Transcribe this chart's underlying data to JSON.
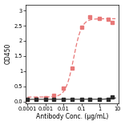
{
  "title": "",
  "xlabel": "Antibody Conc. (µg/mL)",
  "ylabel": "OD450",
  "red_x": [
    0.0001,
    0.0003,
    0.001,
    0.003,
    0.01,
    0.03,
    0.1,
    0.3,
    1.0,
    3.0,
    5.0
  ],
  "red_y": [
    0.08,
    0.1,
    0.13,
    0.2,
    0.45,
    1.1,
    2.45,
    2.78,
    2.75,
    2.72,
    2.6
  ],
  "black_x": [
    0.0001,
    0.0003,
    0.001,
    0.003,
    0.01,
    0.03,
    0.1,
    0.3,
    1.0,
    3.0,
    5.0
  ],
  "black_y": [
    0.07,
    0.07,
    0.07,
    0.07,
    0.07,
    0.07,
    0.07,
    0.07,
    0.07,
    0.07,
    0.15
  ],
  "red_color": "#e87878",
  "black_color": "#2a2a2a",
  "bg_color": "#ffffff",
  "yticks": [
    0.0,
    0.5,
    1.0,
    1.5,
    2.0,
    2.5,
    3.0
  ],
  "xtick_vals": [
    0.0001,
    0.001,
    0.01,
    0.1,
    1,
    10
  ],
  "xtick_labels": [
    "0.0001",
    "0.001",
    "0.01",
    "0.1",
    "1",
    "10"
  ],
  "xlim": [
    8e-05,
    12
  ],
  "ylim": [
    -0.05,
    3.2
  ],
  "xlabel_fontsize": 5.5,
  "ylabel_fontsize": 5.5,
  "tick_fontsize": 4.8
}
